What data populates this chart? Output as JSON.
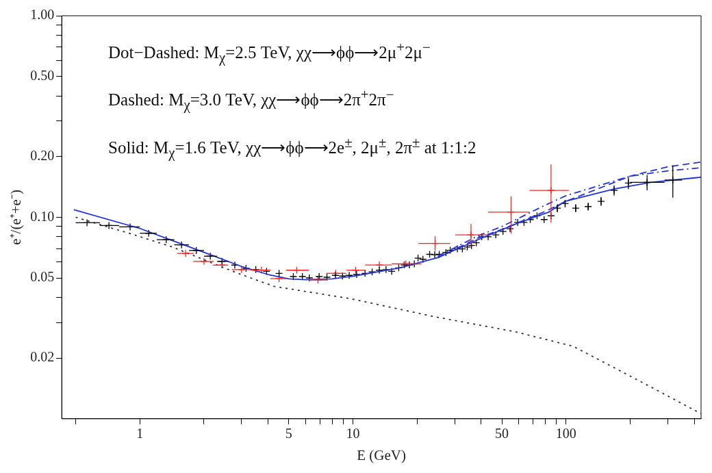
{
  "chart_data": {
    "type": "line",
    "xlabel": "E (GeV)",
    "ylabel": "e⁺/(e⁺+e⁻)",
    "log": "xy",
    "grid": false,
    "legend": false,
    "xlim": [
      0.43,
      430
    ],
    "ylim": [
      0.01,
      1
    ],
    "xticks": [
      {
        "value": 0.5,
        "label": null
      },
      1,
      {
        "value": 2,
        "label": null
      },
      {
        "value": 3,
        "label": null
      },
      {
        "value": 4,
        "label": null
      },
      5,
      {
        "value": 6,
        "label": null
      },
      {
        "value": 7,
        "label": null
      },
      {
        "value": 8,
        "label": null
      },
      {
        "value": 9,
        "label": null
      },
      10,
      {
        "value": 20,
        "label": null
      },
      {
        "value": 30,
        "label": null
      },
      {
        "value": 40,
        "label": null
      },
      50,
      {
        "value": 60,
        "label": null
      },
      {
        "value": 70,
        "label": null
      },
      {
        "value": 80,
        "label": null
      },
      {
        "value": 90,
        "label": null
      },
      100,
      {
        "value": 200,
        "label": null
      },
      {
        "value": 300,
        "label": null
      },
      {
        "value": 400,
        "label": null
      }
    ],
    "yticks": [
      {
        "value": 0.02,
        "label": "0.02"
      },
      {
        "value": 0.03,
        "label": null
      },
      {
        "value": 0.04,
        "label": null
      },
      {
        "value": 0.05,
        "label": "0.05"
      },
      {
        "value": 0.06,
        "label": null
      },
      {
        "value": 0.07,
        "label": null
      },
      {
        "value": 0.08,
        "label": null
      },
      {
        "value": 0.09,
        "label": null
      },
      {
        "value": 0.1,
        "label": "0.10"
      },
      {
        "value": 0.2,
        "label": "0.20"
      },
      {
        "value": 0.3,
        "label": null
      },
      {
        "value": 0.4,
        "label": null
      },
      {
        "value": 0.5,
        "label": "0.50"
      },
      {
        "value": 0.6,
        "label": null
      },
      {
        "value": 0.7,
        "label": null
      },
      {
        "value": 0.8,
        "label": null
      },
      {
        "value": 0.9,
        "label": null
      },
      {
        "value": 1,
        "label": "1.00"
      }
    ],
    "annotations": [
      "Dot−Dashed: M$_{χ}$=2.5 TeV, χχ⟶ϕϕ⟶2μ$^{+}$2μ$^{−}$",
      "Dashed: M$_{χ}$=3.0 TeV, χχ⟶ϕϕ⟶2π$^{+}$2π$^{−}$",
      "Solid: M$_{χ}$=1.6 TeV, χχ⟶ϕϕ⟶2e$^{±}$, 2μ$^{±}$, 2π$^{±}$ at 1:1:2"
    ],
    "series": [
      {
        "color": "#333333",
        "line_style": "dotted",
        "x": [
          0.5,
          0.9,
          1.41,
          2.9,
          4.27,
          9.8,
          23.8,
          58,
          108,
          224,
          430
        ],
        "values": [
          0.1,
          0.083,
          0.0714,
          0.0526,
          0.0454,
          0.0394,
          0.0322,
          0.027,
          0.0229,
          0.0153,
          0.0106
        ]
      },
      {
        "color": "#2233dd",
        "line_style": "solid",
        "x": [
          0.49,
          1,
          2,
          3,
          4,
          5,
          6,
          8,
          10,
          16.4,
          25,
          38.7,
          60,
          83,
          99,
          168,
          250,
          430
        ],
        "values": [
          0.109,
          0.088,
          0.067,
          0.057,
          0.052,
          0.0495,
          0.049,
          0.0495,
          0.051,
          0.056,
          0.063,
          0.0775,
          0.094,
          0.106,
          0.12,
          0.138,
          0.149,
          0.158
        ]
      },
      {
        "color": "#2233dd",
        "line_style": "dashed",
        "x": [
          25,
          38.7,
          50,
          80,
          100,
          200,
          300,
          430
        ],
        "values": [
          0.063,
          0.079,
          0.087,
          0.107,
          0.12,
          0.16,
          0.178,
          0.188
        ]
      },
      {
        "color": "#2233dd",
        "line_style": "dashdot",
        "x": [
          25,
          38.7,
          50,
          80,
          100,
          200,
          300,
          430
        ],
        "values": [
          0.064,
          0.081,
          0.09,
          0.115,
          0.128,
          0.16,
          0.17,
          0.176
        ]
      },
      {
        "type": "scatter",
        "color": "#000000",
        "marker": "cross",
        "x": [
          0.565,
          0.716,
          0.9,
          1.1,
          1.33,
          1.57,
          1.84,
          2.14,
          2.43,
          2.79,
          3.15,
          3.5,
          3.93,
          4.5,
          5.25,
          5.79,
          6.24,
          6.94,
          7.55,
          8.27,
          8.93,
          9.6,
          10.4,
          11.4,
          12.3,
          13.3,
          14.3,
          15.2,
          16.4,
          17.4,
          18.4,
          19.4,
          20.2,
          21.3,
          22.9,
          24.2,
          25.4,
          27.3,
          28.6,
          30.9,
          32.6,
          34.4,
          36,
          37.9,
          40.2,
          43.1,
          46.8,
          50.6,
          54.6,
          59.3,
          63.5,
          67.9,
          73.1,
          78.9,
          85,
          91,
          99,
          111,
          127,
          146,
          168,
          196,
          240,
          317
        ],
        "values": [
          0.0939,
          0.091,
          0.0896,
          0.0833,
          0.0774,
          0.073,
          0.0684,
          0.0641,
          0.0604,
          0.0579,
          0.0558,
          0.055,
          0.0539,
          0.0527,
          0.0508,
          0.0508,
          0.05,
          0.0508,
          0.0504,
          0.0515,
          0.0511,
          0.0515,
          0.052,
          0.0527,
          0.0536,
          0.0546,
          0.055,
          0.0539,
          0.0561,
          0.058,
          0.058,
          0.0587,
          0.0627,
          0.0619,
          0.0655,
          0.0652,
          0.0655,
          0.0668,
          0.0686,
          0.0697,
          0.0697,
          0.0712,
          0.0724,
          0.0747,
          0.08,
          0.08,
          0.0818,
          0.0851,
          0.0878,
          0.0943,
          0.0943,
          0.0974,
          0.1017,
          0.0974,
          0.1017,
          0.111,
          0.117,
          0.111,
          0.113,
          0.12,
          0.136,
          0.148,
          0.149,
          0.153
        ],
        "errors": [
          null,
          null,
          null,
          null,
          null,
          null,
          null,
          null,
          null,
          null,
          null,
          null,
          null,
          null,
          null,
          null,
          null,
          null,
          null,
          null,
          null,
          null,
          null,
          null,
          null,
          null,
          null,
          null,
          null,
          null,
          null,
          null,
          null,
          null,
          null,
          null,
          null,
          null,
          null,
          null,
          null,
          null,
          null,
          null,
          null,
          null,
          null,
          null,
          null,
          null,
          null,
          null,
          null,
          null,
          null,
          0.005,
          0.005,
          0.005,
          0.005,
          0.006,
          0.008,
          0.01,
          0.013,
          0.028
        ],
        "xerrors": [
          [
            0.5,
            0.65
          ],
          [
            0.65,
            0.8
          ],
          [
            0.8,
            1.0
          ],
          [
            1.0,
            1.2
          ],
          [
            1.2,
            1.45
          ],
          [
            1.45,
            1.7
          ],
          [
            1.7,
            2.0
          ],
          [
            2.0,
            2.3
          ],
          [
            2.3,
            2.6
          ],
          null,
          null,
          null,
          null,
          null,
          null,
          null,
          null,
          null,
          null,
          null,
          null,
          null,
          null,
          null,
          null,
          null,
          null,
          null,
          null,
          null,
          null,
          null,
          null,
          null,
          null,
          null,
          null,
          null,
          null,
          null,
          null,
          null,
          null,
          null,
          null,
          null,
          null,
          null,
          null,
          null,
          null,
          null,
          null,
          null,
          null,
          null,
          null,
          null,
          null,
          null,
          null,
          null,
          [
            200,
            290
          ],
          [
            290,
            350
          ]
        ]
      },
      {
        "type": "scatter",
        "color": "#ff2222",
        "marker": "cross",
        "x": [
          1.64,
          2.0,
          2.43,
          3.0,
          3.72,
          4.5,
          5.45,
          6.85,
          8.3,
          10.3,
          13.3,
          17.7,
          24.3,
          35.8,
          55.2,
          85
        ],
        "values": [
          0.0662,
          0.0604,
          0.0579,
          0.055,
          0.0547,
          0.0496,
          0.0546,
          0.0488,
          0.0527,
          0.0546,
          0.058,
          0.0587,
          0.0742,
          0.0818,
          0.106,
          0.136
        ],
        "errors": [
          null,
          null,
          null,
          null,
          null,
          null,
          null,
          null,
          null,
          null,
          null,
          null,
          [
            0.0684,
            0.0805
          ],
          [
            0.0728,
            0.0925
          ],
          [
            0.083,
            0.127
          ],
          [
            0.094,
            0.183
          ]
        ],
        "xerrors": [
          [
            1.5,
            1.79
          ],
          [
            1.78,
            2.22
          ],
          [
            2.2,
            2.6
          ],
          [
            2.7,
            3.3
          ],
          [
            3.3,
            4.1
          ],
          [
            4.1,
            4.86
          ],
          [
            4.86,
            6.2
          ],
          [
            6.2,
            7.5
          ],
          [
            7.5,
            9.3
          ],
          [
            9.3,
            11.4
          ],
          [
            11.4,
            15.2
          ],
          [
            15.2,
            21.0
          ],
          [
            20.3,
            28.6
          ],
          [
            30.2,
            43.1
          ],
          [
            43.1,
            67.4
          ],
          [
            67.4,
            103
          ]
        ]
      }
    ]
  }
}
